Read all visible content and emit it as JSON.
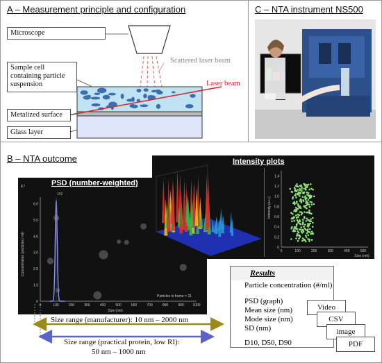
{
  "panelA": {
    "title": "A – Measurement principle and configuration",
    "microscope": "Microscope",
    "sample_cell": "Sample cell containing particle suspension",
    "metalized": "Metalized surface",
    "glass": "Glass layer",
    "scattered": "Scattered laser beam",
    "laser": "Laser beam"
  },
  "panelC": {
    "title": "C – NTA instrument NS500"
  },
  "panelB": {
    "title": "B – NTA outcome",
    "psd_title": "PSD (number-weighted)",
    "intensity_title": "Intensity plots",
    "psd_ylabel": "Concentration (particles / ml)",
    "psd_xlabel": "Size (nm)",
    "psd_exp": "E7",
    "psd_peak": "102",
    "psd_frame": "Particles in frame = 31",
    "psd_yticks": [
      "0",
      "1.0",
      "2.0",
      "3.0",
      "4.0",
      "5.0",
      "6.0"
    ],
    "psd_xticks": [
      "0",
      "100",
      "200",
      "300",
      "400",
      "500",
      "600",
      "700",
      "800",
      "900",
      "1000"
    ],
    "scatter_ylabel": "Intensity (a.u.)",
    "scatter_xlabel": "Size (nm)",
    "scatter_yticks": [
      "0",
      "0.2",
      "0.4",
      "0.6",
      "0.8",
      "1.0",
      "1.2",
      "1.4"
    ],
    "scatter_xticks": [
      "0",
      "100",
      "200",
      "300",
      "400",
      "500"
    ],
    "range_manufacturer": "Size range (manufacturer): 10 nm – 2000 nm",
    "range_practical_1": "Size range (practical protein, low RI):",
    "range_practical_2": "50 nm – 1000 nm"
  },
  "results": {
    "title": "Results",
    "concentration": "Particle concentration (#/ml)",
    "psd": "PSD (graph)",
    "mean": "Mean size (nm)",
    "mode": "Mode size (nm)",
    "sd": "SD (nm)",
    "d": "D10, D50, D90",
    "exports": [
      "Video",
      "CSV",
      "image",
      "PDF"
    ]
  },
  "colors": {
    "laser": "#d42a2a",
    "manufacturer_arrow": "#9a8a1a",
    "practical_arrow": "#5a63c8",
    "psd_curve": "#8c92ff"
  }
}
